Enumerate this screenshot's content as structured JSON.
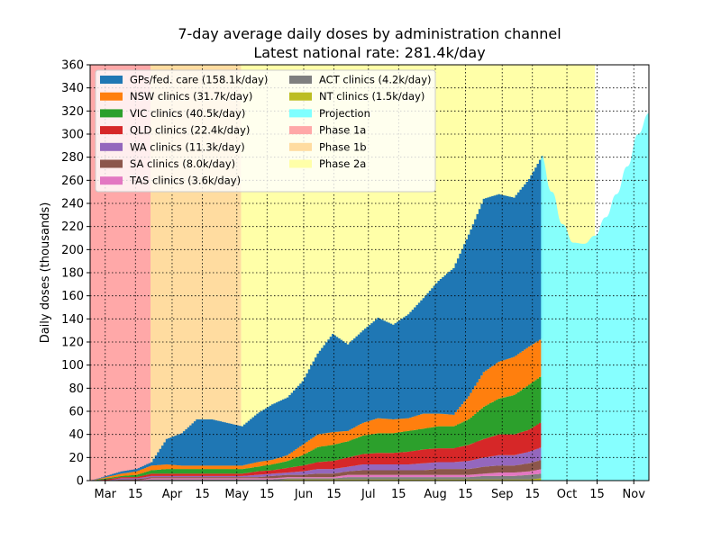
{
  "chart_data": {
    "type": "area",
    "title": "7-day average daily doses by administration channel",
    "subtitle": "Latest national rate: 281.4k/day",
    "xlabel": "",
    "ylabel": "Daily doses (thousands)",
    "ylim": [
      0,
      360
    ],
    "yticks": [
      0,
      20,
      40,
      60,
      80,
      100,
      120,
      140,
      160,
      180,
      200,
      220,
      240,
      260,
      280,
      300,
      320,
      340,
      360
    ],
    "xlim": [
      "2021-02-22",
      "2021-11-08"
    ],
    "xticks": [
      {
        "date": "2021-03-01",
        "label": "Mar"
      },
      {
        "date": "2021-03-15",
        "label": "15"
      },
      {
        "date": "2021-04-01",
        "label": "Apr"
      },
      {
        "date": "2021-04-15",
        "label": "15"
      },
      {
        "date": "2021-05-01",
        "label": "May"
      },
      {
        "date": "2021-05-15",
        "label": "15"
      },
      {
        "date": "2021-06-01",
        "label": "Jun"
      },
      {
        "date": "2021-06-15",
        "label": "15"
      },
      {
        "date": "2021-07-01",
        "label": "Jul"
      },
      {
        "date": "2021-07-15",
        "label": "15"
      },
      {
        "date": "2021-08-01",
        "label": "Aug"
      },
      {
        "date": "2021-08-15",
        "label": "15"
      },
      {
        "date": "2021-09-01",
        "label": "Sep"
      },
      {
        "date": "2021-09-15",
        "label": "15"
      },
      {
        "date": "2021-10-01",
        "label": "Oct"
      },
      {
        "date": "2021-10-15",
        "label": "15"
      },
      {
        "date": "2021-11-01",
        "label": "Nov"
      }
    ],
    "grid": true,
    "legend_position": "top-left",
    "phases": [
      {
        "name": "Phase 1a",
        "start": "2021-02-22",
        "end": "2021-03-22",
        "color": "#ffa8a8"
      },
      {
        "name": "Phase 1b",
        "start": "2021-03-22",
        "end": "2021-05-03",
        "color": "#ffdca0"
      },
      {
        "name": "Phase 2a",
        "start": "2021-05-03",
        "end": "2021-10-14",
        "color": "#ffffa8"
      }
    ],
    "x": [
      "2021-02-22",
      "2021-03-01",
      "2021-03-08",
      "2021-03-15",
      "2021-03-22",
      "2021-03-29",
      "2021-04-05",
      "2021-04-12",
      "2021-04-19",
      "2021-04-26",
      "2021-05-03",
      "2021-05-10",
      "2021-05-17",
      "2021-05-24",
      "2021-05-31",
      "2021-06-07",
      "2021-06-14",
      "2021-06-21",
      "2021-06-28",
      "2021-07-05",
      "2021-07-12",
      "2021-07-19",
      "2021-07-26",
      "2021-08-02",
      "2021-08-09",
      "2021-08-16",
      "2021-08-23",
      "2021-08-30",
      "2021-09-06",
      "2021-09-13",
      "2021-09-19"
    ],
    "series": [
      {
        "name": "GPs/fed. care (158.1k/day)",
        "color": "#1f77b4",
        "values": [
          0,
          1,
          2,
          2,
          3,
          22,
          28,
          40,
          40,
          37,
          34,
          42,
          48,
          50,
          55,
          70,
          85,
          75,
          80,
          87,
          82,
          90,
          100,
          115,
          127,
          140,
          150,
          145,
          138,
          145,
          158
        ]
      },
      {
        "name": "NSW clinics (31.7k/day)",
        "color": "#ff7f0e",
        "values": [
          0,
          1,
          2,
          3,
          4,
          4,
          3,
          3,
          3,
          3,
          3,
          4,
          4,
          5,
          9,
          11,
          11,
          9,
          11,
          13,
          12,
          11,
          13,
          11,
          10,
          20,
          30,
          32,
          33,
          33,
          32
        ]
      },
      {
        "name": "VIC clinics (40.5k/day)",
        "color": "#2ca02c",
        "values": [
          0,
          1,
          1,
          2,
          3,
          4,
          4,
          4,
          4,
          4,
          4,
          4,
          5,
          6,
          9,
          13,
          14,
          14,
          16,
          17,
          17,
          18,
          18,
          19,
          19,
          22,
          28,
          31,
          34,
          39,
          40
        ]
      },
      {
        "name": "QLD clinics (22.4k/day)",
        "color": "#d62728",
        "values": [
          0,
          1,
          1,
          1,
          2,
          2,
          2,
          2,
          2,
          2,
          2,
          3,
          3,
          4,
          5,
          6,
          7,
          8,
          9,
          10,
          10,
          11,
          12,
          12,
          12,
          14,
          16,
          18,
          18,
          19,
          22
        ]
      },
      {
        "name": "WA clinics (11.3k/day)",
        "color": "#9467bd",
        "values": [
          0,
          0,
          1,
          1,
          1,
          1,
          1,
          1,
          1,
          1,
          1,
          2,
          2,
          2,
          3,
          4,
          4,
          4,
          5,
          5,
          5,
          5,
          6,
          6,
          6,
          7,
          8,
          9,
          9,
          10,
          11
        ]
      },
      {
        "name": "SA clinics (8.0k/day)",
        "color": "#8c564b",
        "values": [
          0,
          0,
          1,
          1,
          1,
          1,
          1,
          1,
          1,
          1,
          1,
          1,
          2,
          2,
          2,
          3,
          3,
          3,
          4,
          4,
          4,
          4,
          4,
          5,
          5,
          5,
          6,
          6,
          6,
          7,
          8
        ]
      },
      {
        "name": "TAS clinics (3.6k/day)",
        "color": "#e377c2",
        "values": [
          0,
          0,
          0,
          0,
          1,
          1,
          1,
          1,
          1,
          1,
          1,
          1,
          1,
          1,
          1,
          1,
          1,
          2,
          2,
          2,
          2,
          2,
          2,
          2,
          2,
          2,
          2,
          3,
          3,
          3,
          4
        ]
      },
      {
        "name": "ACT clinics (4.2k/day)",
        "color": "#7f7f7f",
        "values": [
          0,
          0,
          0,
          0,
          1,
          1,
          1,
          1,
          1,
          1,
          1,
          1,
          1,
          1,
          1,
          1,
          1,
          2,
          2,
          2,
          2,
          2,
          2,
          2,
          2,
          2,
          3,
          3,
          3,
          4,
          4
        ]
      },
      {
        "name": "NT clinics (1.5k/day)",
        "color": "#bcbd22",
        "values": [
          0,
          0,
          0,
          0,
          0,
          0,
          0,
          0,
          0,
          0,
          0,
          0,
          0,
          1,
          1,
          1,
          1,
          1,
          1,
          1,
          1,
          1,
          1,
          1,
          1,
          1,
          1,
          1,
          1,
          1,
          2
        ]
      }
    ],
    "projection": {
      "name": "Projection",
      "color": "#7fffff",
      "x": [
        "2021-09-19",
        "2021-09-24",
        "2021-09-29",
        "2021-10-04",
        "2021-10-09",
        "2021-10-14",
        "2021-10-19",
        "2021-10-24",
        "2021-10-29",
        "2021-11-03",
        "2021-11-08"
      ],
      "values": [
        281,
        250,
        222,
        206,
        205,
        212,
        228,
        248,
        272,
        300,
        318
      ]
    }
  }
}
